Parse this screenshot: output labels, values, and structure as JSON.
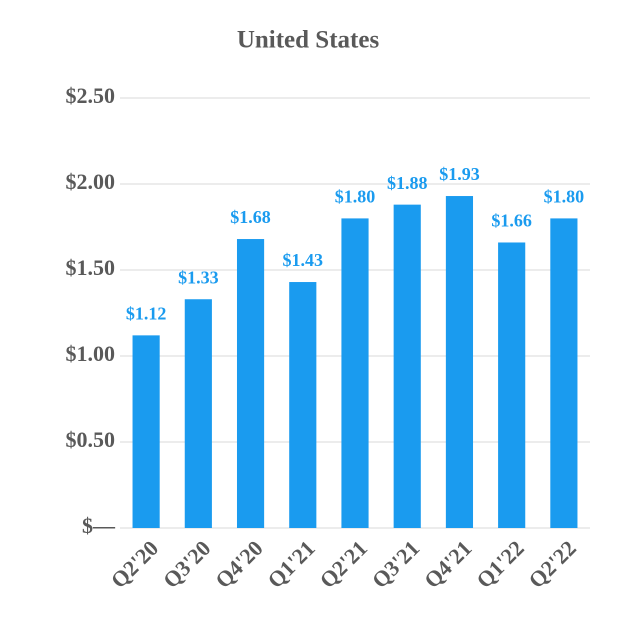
{
  "chart_data": {
    "type": "bar",
    "title": "United States",
    "categories": [
      "Q2'20",
      "Q3'20",
      "Q4'20",
      "Q1'21",
      "Q2'21",
      "Q3'21",
      "Q4'21",
      "Q1'22",
      "Q2'22"
    ],
    "values": [
      1.12,
      1.33,
      1.68,
      1.43,
      1.8,
      1.88,
      1.93,
      1.66,
      1.8
    ],
    "value_labels": [
      "$1.12",
      "$1.33",
      "$1.68",
      "$1.43",
      "$1.80",
      "$1.88",
      "$1.93",
      "$1.66",
      "$1.80"
    ],
    "color": "#1a9bef",
    "ylim": [
      0,
      2.5
    ],
    "yticks": [
      {
        "value": 0,
        "label": "$—"
      },
      {
        "value": 0.5,
        "label": "$0.50"
      },
      {
        "value": 1,
        "label": "$1.00"
      },
      {
        "value": 1.5,
        "label": "$1.50"
      },
      {
        "value": 2,
        "label": "$2.00"
      },
      {
        "value": 2.5,
        "label": "$2.50"
      }
    ],
    "grid": true
  }
}
